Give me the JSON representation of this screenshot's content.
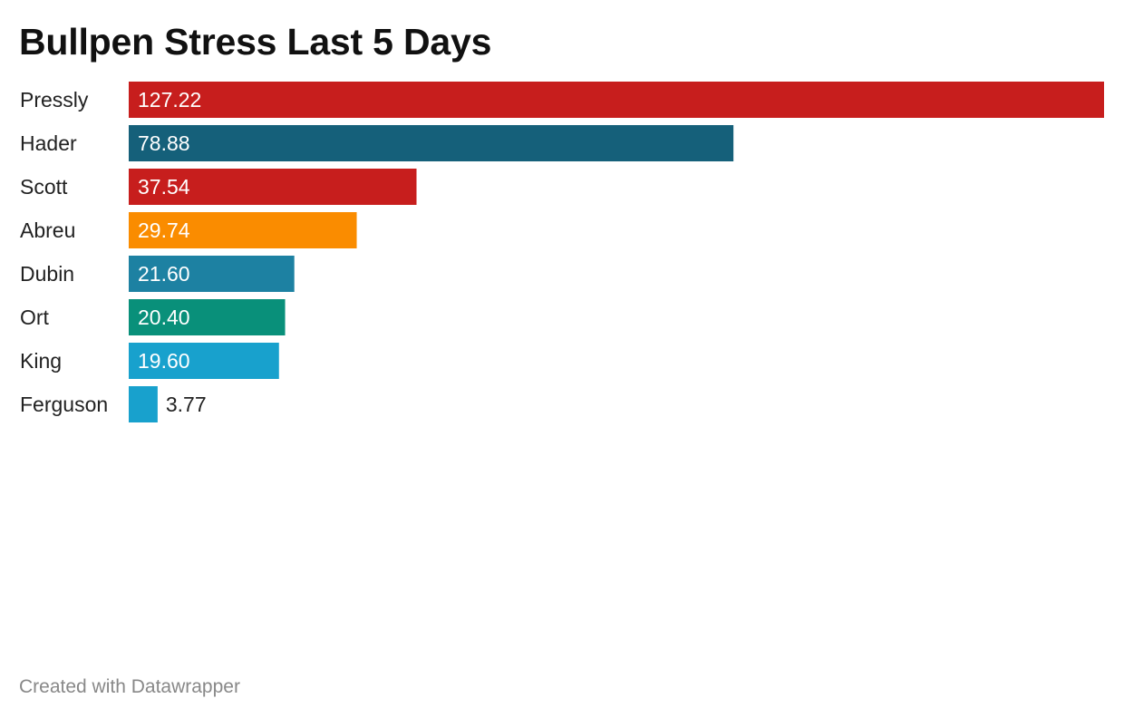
{
  "chart_data": {
    "type": "bar",
    "orientation": "horizontal",
    "title": "Bullpen Stress Last 5 Days",
    "categories": [
      "Pressly",
      "Hader",
      "Scott",
      "Abreu",
      "Dubin",
      "Ort",
      "King",
      "Ferguson"
    ],
    "values": [
      127.22,
      78.88,
      37.54,
      29.74,
      21.6,
      20.4,
      19.6,
      3.77
    ],
    "value_labels": [
      "127.22",
      "78.88",
      "37.54",
      "29.74",
      "21.60",
      "20.40",
      "19.60",
      "3.77"
    ],
    "colors": [
      "#c71e1d",
      "#15607a",
      "#c71e1d",
      "#fa8c00",
      "#1d81a2",
      "#09907a",
      "#18a1cd",
      "#18a1cd"
    ],
    "xlim": [
      0,
      127.22
    ],
    "grid": false,
    "legend": "none"
  },
  "footer": {
    "credit": "Created with Datawrapper"
  }
}
